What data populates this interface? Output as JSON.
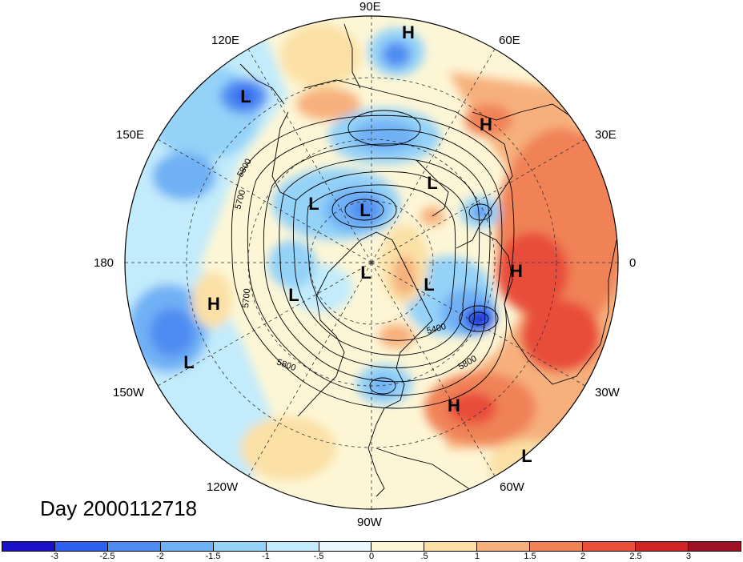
{
  "title": "Day 2000112718",
  "longitude_labels": {
    "lon_90e": "90E",
    "lon_60e": "60E",
    "lon_30e": "30E",
    "lon_0": "0",
    "lon_30w": "30W",
    "lon_60w": "60W",
    "lon_90w": "90W",
    "lon_120w": "120W",
    "lon_150w": "150W",
    "lon_180": "180",
    "lon_150e": "150E",
    "lon_120e": "120E"
  },
  "contour_labels": [
    "5800",
    "5700",
    "5700",
    "5800",
    "5400",
    "5800"
  ],
  "pressure_centers": {
    "high": "H",
    "low": "L"
  },
  "colorbar": {
    "ticks": [
      "-3",
      "-2.5",
      "-2",
      "-1.5",
      "-1",
      "-.5",
      "0",
      ".5",
      "1",
      "1.5",
      "2",
      "2.5",
      "3"
    ],
    "colors": [
      "#1a10c8",
      "#2d5ff0",
      "#4f8cf2",
      "#6fb1f5",
      "#94d2f8",
      "#c2ebfb",
      "#e8f8fd",
      "#fdf6d6",
      "#fbe0a6",
      "#f7b07c",
      "#f08256",
      "#e84e3a",
      "#d02424",
      "#a01024"
    ]
  }
}
